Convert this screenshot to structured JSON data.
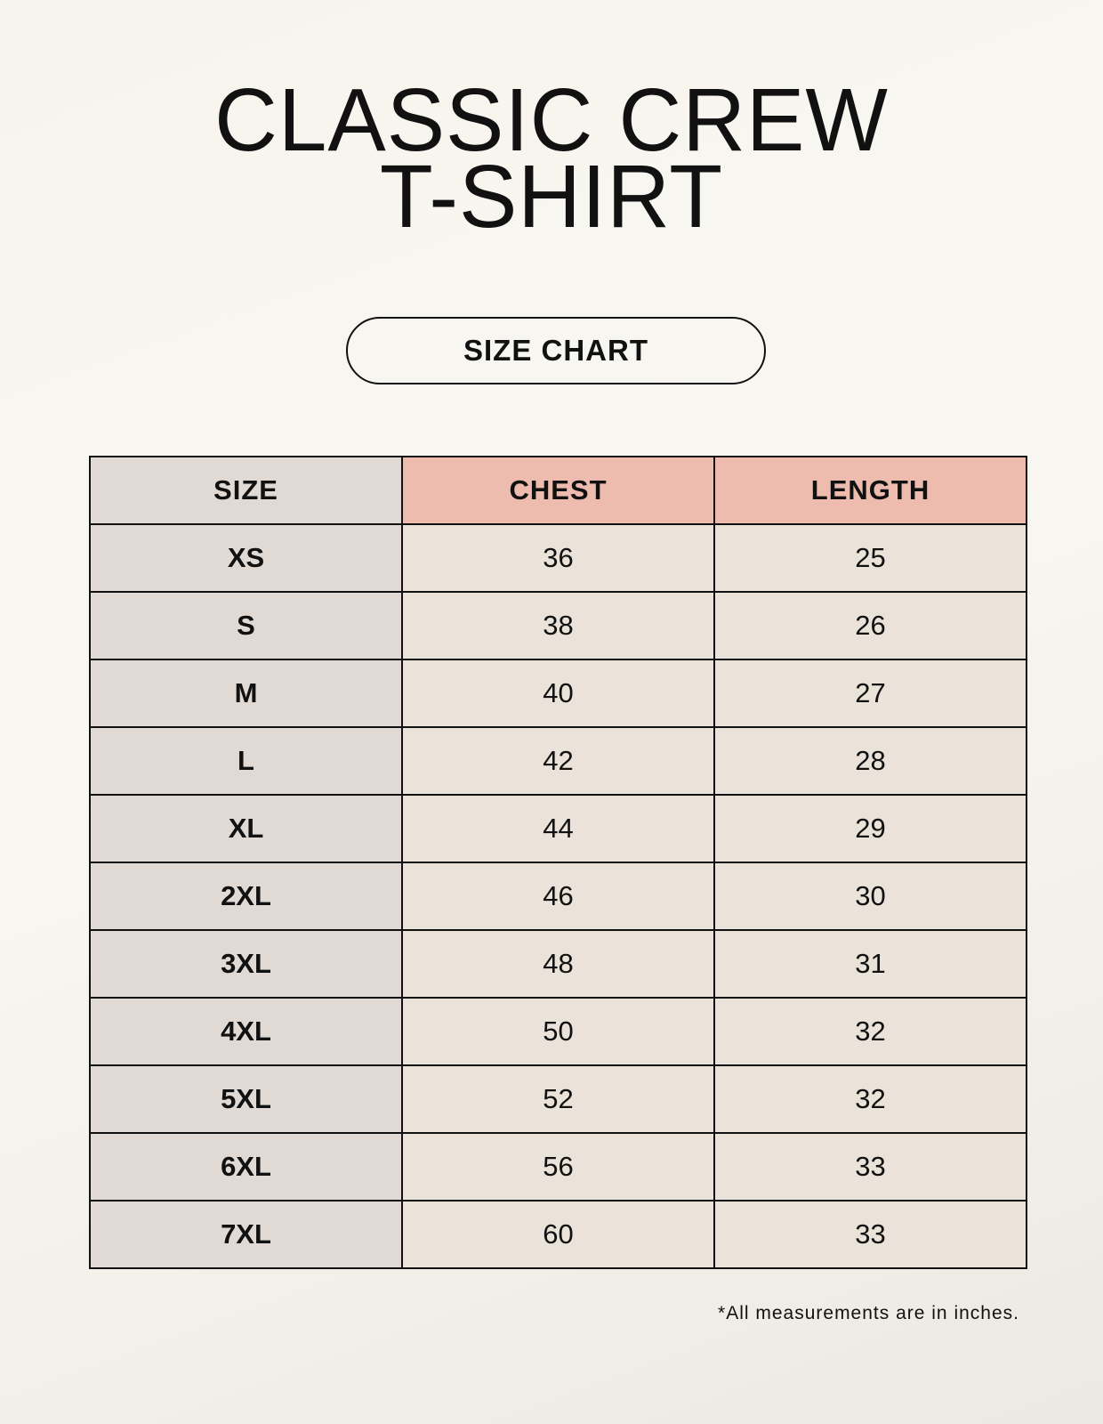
{
  "title": {
    "line1": "CLASSIC CREW",
    "line2": "T-SHIRT"
  },
  "badge": "SIZE CHART",
  "table": {
    "headers": [
      "SIZE",
      "CHEST",
      "LENGTH"
    ],
    "rows": [
      [
        "XS",
        "36",
        "25"
      ],
      [
        "S",
        "38",
        "26"
      ],
      [
        "M",
        "40",
        "27"
      ],
      [
        "L",
        "42",
        "28"
      ],
      [
        "XL",
        "44",
        "29"
      ],
      [
        "2XL",
        "46",
        "30"
      ],
      [
        "3XL",
        "48",
        "31"
      ],
      [
        "4XL",
        "50",
        "32"
      ],
      [
        "5XL",
        "52",
        "32"
      ],
      [
        "6XL",
        "56",
        "33"
      ],
      [
        "7XL",
        "60",
        "33"
      ]
    ]
  },
  "note": "*All measurements are in inches.",
  "colors": {
    "background": "#f8f5ef",
    "size_column": "#e0d9d4",
    "header_accent": "#edbcae",
    "cell": "#ebe3d9"
  }
}
